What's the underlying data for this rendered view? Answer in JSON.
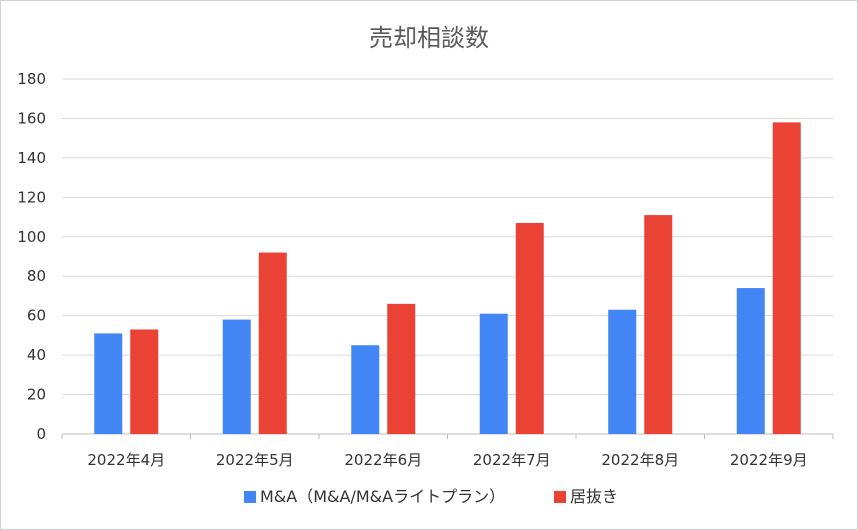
{
  "chart_data": {
    "type": "bar",
    "title": "売却相談数",
    "categories": [
      "2022年4月",
      "2022年5月",
      "2022年6月",
      "2022年7月",
      "2022年8月",
      "2022年9月"
    ],
    "series": [
      {
        "name": "M&A（M&A/M&Aライトプラン）",
        "color": "#4285F4",
        "values": [
          51,
          58,
          45,
          61,
          63,
          74
        ]
      },
      {
        "name": "居抜き",
        "color": "#EA4335",
        "values": [
          53,
          92,
          66,
          107,
          111,
          158
        ]
      }
    ],
    "ylim": [
      0,
      180
    ],
    "yticks": [
      0,
      20,
      40,
      60,
      80,
      100,
      120,
      140,
      160,
      180
    ],
    "xlabel": "",
    "ylabel": "",
    "grid": true,
    "legend_position": "bottom"
  }
}
